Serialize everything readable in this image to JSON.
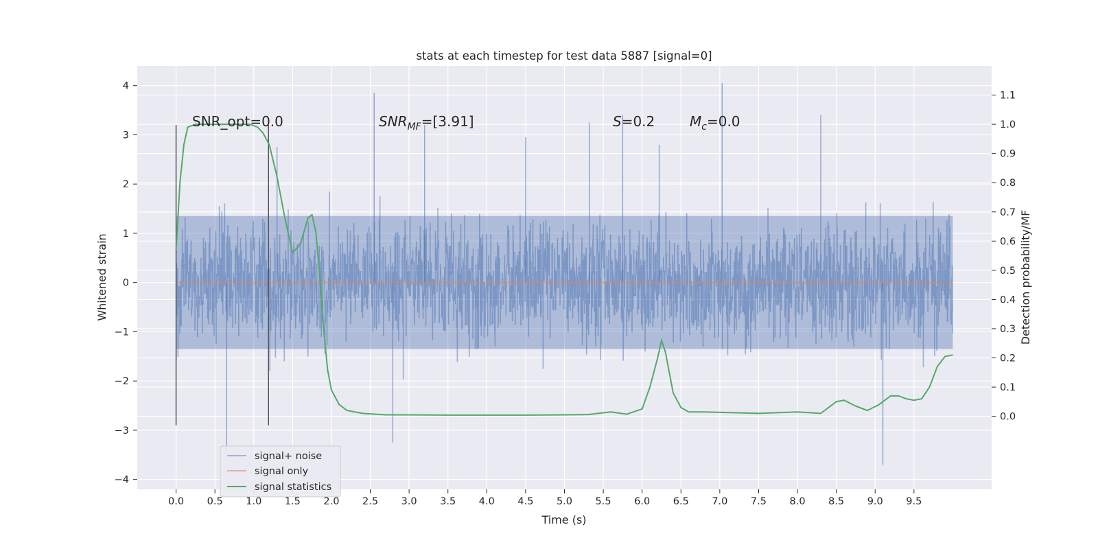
{
  "chart_data": {
    "type": "line",
    "title": "stats at each timestep for test data 5887 [signal=0]",
    "xlabel": "Time (s)",
    "ylabel": "Whitened strain",
    "y2label": "Detection probability/MF",
    "xlim": [
      -0.5,
      10.5
    ],
    "ylim": [
      -4.2,
      4.4
    ],
    "y2lim": [
      -0.25,
      1.2
    ],
    "grid": true,
    "legend_position": "lower-left",
    "x_ticks": [
      "0.0",
      "0.5",
      "1.0",
      "1.5",
      "2.0",
      "2.5",
      "3.0",
      "3.5",
      "4.0",
      "4.5",
      "5.0",
      "5.5",
      "6.0",
      "6.5",
      "7.0",
      "7.5",
      "8.0",
      "8.5",
      "9.0",
      "9.5"
    ],
    "y_ticks": [
      "4",
      "3",
      "2",
      "1",
      "0",
      "−1",
      "−2",
      "−3",
      "−4"
    ],
    "y2_ticks": [
      "1.1",
      "1.0",
      "0.9",
      "0.8",
      "0.7",
      "0.6",
      "0.5",
      "0.4",
      "0.3",
      "0.2",
      "0.1",
      "0.0"
    ],
    "annotations": {
      "snr_opt": "SNR_opt=0.0",
      "snr_mf_main": "SNR",
      "snr_mf_sub": "MF",
      "snr_mf_value": "=[3.91]",
      "s_main": "S",
      "s_value": "=0.2",
      "mc_main": "M",
      "mc_sub": "c",
      "mc_value": "=0.0"
    },
    "vertical_markers": [
      {
        "x": 0.0,
        "y_range": [
          -2.9,
          3.2
        ]
      },
      {
        "x": 1.19,
        "y_range": [
          -2.9,
          3.2
        ]
      }
    ],
    "series": [
      {
        "name": "signal+ noise",
        "axis": "left",
        "color": "#4c72b0",
        "description_values": {
          "x_range": [
            0.0,
            10.0
          ],
          "typical_range": [
            -1.8,
            1.9
          ],
          "max": 4.05,
          "min": -3.7
        },
        "peaks": [
          {
            "x": 0.65,
            "y": -3.4
          },
          {
            "x": 2.55,
            "y": 3.85
          },
          {
            "x": 2.79,
            "y": -3.25
          },
          {
            "x": 3.2,
            "y": 3.2
          },
          {
            "x": 5.32,
            "y": 3.25
          },
          {
            "x": 5.75,
            "y": 3.4
          },
          {
            "x": 7.03,
            "y": 4.05
          },
          {
            "x": 8.3,
            "y": 3.4
          },
          {
            "x": 9.1,
            "y": -3.7
          },
          {
            "x": 1.3,
            "y": 2.75
          },
          {
            "x": 4.5,
            "y": 2.95
          },
          {
            "x": 6.22,
            "y": 2.8
          }
        ]
      },
      {
        "name": "signal only",
        "axis": "left",
        "color": "#dd8452",
        "x": [
          0.0,
          10.0
        ],
        "values": [
          0.0,
          0.0
        ]
      },
      {
        "name": "signal statistics",
        "axis": "right",
        "color": "#55a868",
        "x": [
          0.0,
          0.05,
          0.1,
          0.15,
          0.25,
          0.5,
          0.75,
          0.95,
          1.05,
          1.12,
          1.2,
          1.3,
          1.4,
          1.5,
          1.6,
          1.7,
          1.75,
          1.8,
          1.85,
          1.9,
          1.95,
          2.0,
          2.1,
          2.2,
          2.4,
          2.7,
          3.0,
          3.5,
          4.0,
          4.5,
          5.0,
          5.3,
          5.6,
          5.8,
          6.0,
          6.1,
          6.2,
          6.25,
          6.3,
          6.4,
          6.5,
          6.6,
          6.8,
          7.5,
          8.0,
          8.3,
          8.5,
          8.6,
          8.75,
          8.9,
          9.05,
          9.2,
          9.3,
          9.4,
          9.5,
          9.6,
          9.7,
          9.8,
          9.9,
          10.0
        ],
        "values": [
          0.57,
          0.8,
          0.93,
          0.99,
          1.0,
          1.0,
          1.0,
          1.0,
          0.99,
          0.97,
          0.93,
          0.82,
          0.68,
          0.56,
          0.59,
          0.68,
          0.69,
          0.63,
          0.48,
          0.3,
          0.16,
          0.09,
          0.04,
          0.02,
          0.01,
          0.005,
          0.005,
          0.004,
          0.004,
          0.004,
          0.005,
          0.006,
          0.015,
          0.007,
          0.025,
          0.1,
          0.2,
          0.26,
          0.22,
          0.08,
          0.03,
          0.015,
          0.015,
          0.01,
          0.015,
          0.01,
          0.05,
          0.055,
          0.035,
          0.02,
          0.04,
          0.07,
          0.07,
          0.06,
          0.055,
          0.06,
          0.1,
          0.17,
          0.205,
          0.21
        ]
      }
    ]
  }
}
